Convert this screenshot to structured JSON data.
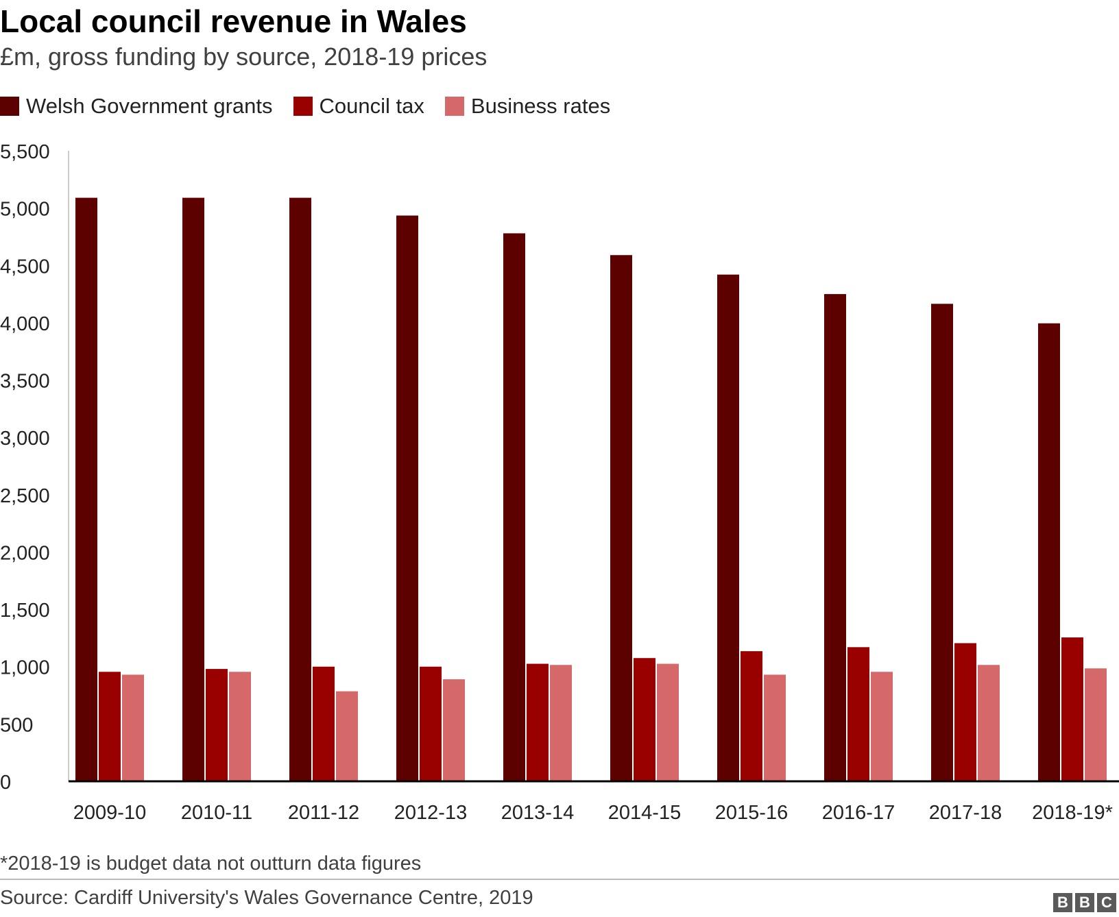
{
  "title": "Local council revenue in Wales",
  "subtitle": "£m, gross funding by source, 2018-19 prices",
  "note": "*2018-19 is budget data not outturn data figures",
  "source": "Source: Cardiff University's Wales Governance Centre, 2019",
  "logo": [
    "B",
    "B",
    "C"
  ],
  "chart_data": {
    "type": "bar",
    "categories": [
      "2009-10",
      "2010-11",
      "2011-12",
      "2012-13",
      "2013-14",
      "2014-15",
      "2015-16",
      "2016-17",
      "2017-18",
      "2018-19*"
    ],
    "series": [
      {
        "name": "Welsh Government grants",
        "color": "#5c0000",
        "values": [
          5090,
          5090,
          5090,
          4935,
          4780,
          4590,
          4420,
          4250,
          4165,
          3995
        ]
      },
      {
        "name": "Council tax",
        "color": "#990000",
        "values": [
          955,
          980,
          1000,
          1000,
          1025,
          1075,
          1135,
          1170,
          1205,
          1255
        ]
      },
      {
        "name": "Business rates",
        "color": "#d56868",
        "values": [
          930,
          955,
          785,
          890,
          1015,
          1025,
          930,
          955,
          1015,
          985
        ]
      }
    ],
    "yticks": [
      "0",
      "500",
      "1,000",
      "1,500",
      "2,000",
      "2,500",
      "3,000",
      "3,500",
      "4,000",
      "4,500",
      "5,000",
      "5,500"
    ],
    "ylim": [
      0,
      5500
    ],
    "grid": false,
    "legend": "top-left"
  }
}
